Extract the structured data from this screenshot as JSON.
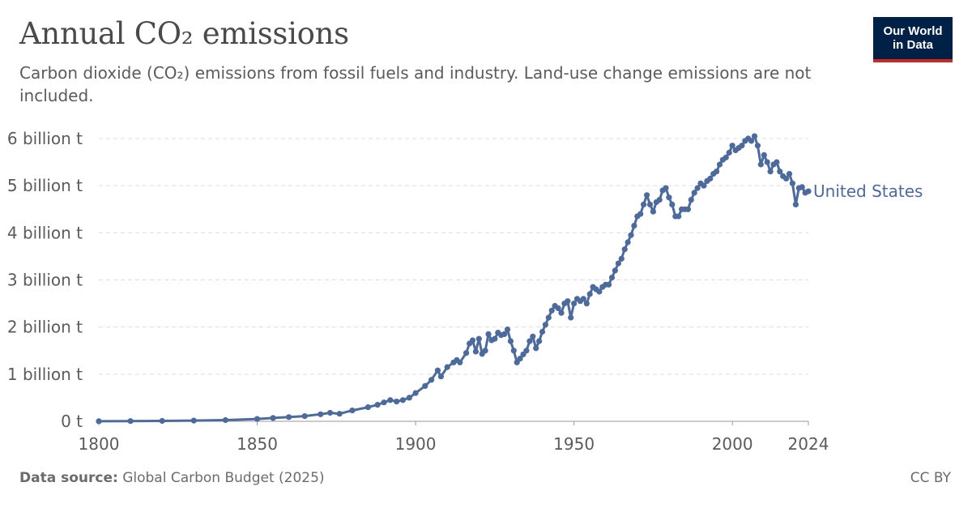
{
  "header": {
    "title": "Annual CO₂ emissions",
    "subtitle": "Carbon dioxide (CO₂) emissions from fossil fuels and industry. Land-use change emissions are not included.",
    "logo_line1": "Our World",
    "logo_line2": "in Data"
  },
  "footer": {
    "source_label": "Data source:",
    "source_value": "Global Carbon Budget (2025)",
    "license": "CC BY"
  },
  "colors": {
    "series": "#4c6a9c",
    "grid": "#dddddd",
    "axis": "#5b5b5b",
    "logo_bg": "#002147",
    "logo_accent": "#ce261e"
  },
  "chart_data": {
    "type": "line",
    "title": "Annual CO₂ emissions",
    "xlabel": "",
    "ylabel": "",
    "xlim": [
      1800,
      2024
    ],
    "ylim": [
      0,
      6000000000
    ],
    "x_ticks": [
      "1800",
      "1850",
      "1900",
      "1950",
      "2000",
      "2024"
    ],
    "x_tick_values": [
      1800,
      1850,
      1900,
      1950,
      2000,
      2024
    ],
    "y_ticks": [
      "0 t",
      "1 billion t",
      "2 billion t",
      "3 billion t",
      "4 billion t",
      "5 billion t",
      "6 billion t"
    ],
    "y_tick_values": [
      0,
      1000000000,
      2000000000,
      3000000000,
      4000000000,
      5000000000,
      6000000000
    ],
    "grid": true,
    "series": [
      {
        "name": "United States",
        "x": [
          1800,
          1810,
          1820,
          1830,
          1840,
          1850,
          1855,
          1860,
          1865,
          1870,
          1873,
          1876,
          1880,
          1885,
          1888,
          1890,
          1892,
          1894,
          1896,
          1898,
          1900,
          1903,
          1905,
          1907,
          1908,
          1910,
          1912,
          1913,
          1914,
          1916,
          1917,
          1918,
          1919,
          1920,
          1921,
          1922,
          1923,
          1924,
          1925,
          1926,
          1927,
          1928,
          1929,
          1930,
          1931,
          1932,
          1933,
          1934,
          1935,
          1936,
          1937,
          1938,
          1939,
          1940,
          1941,
          1942,
          1943,
          1944,
          1945,
          1946,
          1947,
          1948,
          1949,
          1950,
          1951,
          1952,
          1953,
          1954,
          1955,
          1956,
          1957,
          1958,
          1959,
          1960,
          1961,
          1962,
          1963,
          1964,
          1965,
          1966,
          1967,
          1968,
          1969,
          1970,
          1971,
          1972,
          1973,
          1974,
          1975,
          1976,
          1977,
          1978,
          1979,
          1980,
          1981,
          1982,
          1983,
          1984,
          1985,
          1986,
          1987,
          1988,
          1989,
          1990,
          1991,
          1992,
          1993,
          1994,
          1995,
          1996,
          1997,
          1998,
          1999,
          2000,
          2001,
          2002,
          2003,
          2004,
          2005,
          2006,
          2007,
          2008,
          2009,
          2010,
          2011,
          2012,
          2013,
          2014,
          2015,
          2016,
          2017,
          2018,
          2019,
          2020,
          2021,
          2022,
          2023,
          2024
        ],
        "values": [
          2000000,
          5000000,
          8000000,
          15000000,
          25000000,
          50000000,
          70000000,
          90000000,
          110000000,
          150000000,
          180000000,
          160000000,
          230000000,
          300000000,
          350000000,
          400000000,
          450000000,
          420000000,
          450000000,
          500000000,
          600000000,
          750000000,
          880000000,
          1080000000,
          950000000,
          1150000000,
          1250000000,
          1300000000,
          1250000000,
          1450000000,
          1650000000,
          1720000000,
          1480000000,
          1750000000,
          1430000000,
          1500000000,
          1850000000,
          1720000000,
          1750000000,
          1880000000,
          1830000000,
          1850000000,
          1950000000,
          1700000000,
          1500000000,
          1250000000,
          1330000000,
          1420000000,
          1500000000,
          1700000000,
          1800000000,
          1550000000,
          1700000000,
          1900000000,
          2050000000,
          2200000000,
          2350000000,
          2450000000,
          2400000000,
          2300000000,
          2500000000,
          2550000000,
          2200000000,
          2500000000,
          2600000000,
          2550000000,
          2600000000,
          2500000000,
          2700000000,
          2850000000,
          2800000000,
          2750000000,
          2850000000,
          2900000000,
          2900000000,
          3050000000,
          3200000000,
          3350000000,
          3450000000,
          3650000000,
          3800000000,
          3950000000,
          4150000000,
          4350000000,
          4400000000,
          4600000000,
          4800000000,
          4600000000,
          4450000000,
          4650000000,
          4700000000,
          4900000000,
          4950000000,
          4750000000,
          4600000000,
          4350000000,
          4350000000,
          4500000000,
          4500000000,
          4500000000,
          4700000000,
          4850000000,
          4950000000,
          5050000000,
          5000000000,
          5100000000,
          5150000000,
          5250000000,
          5300000000,
          5450000000,
          5550000000,
          5600000000,
          5700000000,
          5850000000,
          5750000000,
          5800000000,
          5850000000,
          5950000000,
          6000000000,
          5950000000,
          6050000000,
          5850000000,
          5450000000,
          5650000000,
          5500000000,
          5300000000,
          5450000000,
          5500000000,
          5300000000,
          5200000000,
          5150000000,
          5250000000,
          5050000000,
          4600000000,
          4950000000,
          4970000000,
          4850000000,
          4880000000
        ],
        "label": "United States"
      }
    ]
  }
}
